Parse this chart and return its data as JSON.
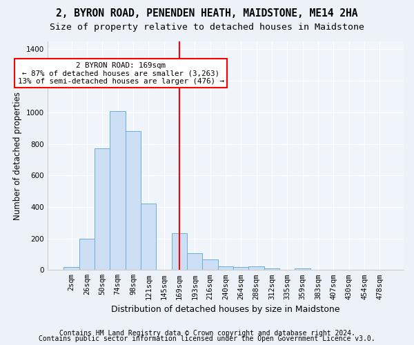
{
  "title": "2, BYRON ROAD, PENENDEN HEATH, MAIDSTONE, ME14 2HA",
  "subtitle": "Size of property relative to detached houses in Maidstone",
  "xlabel": "Distribution of detached houses by size in Maidstone",
  "ylabel": "Number of detached properties",
  "categories": [
    "2sqm",
    "26sqm",
    "50sqm",
    "74sqm",
    "98sqm",
    "121sqm",
    "145sqm",
    "169sqm",
    "193sqm",
    "216sqm",
    "240sqm",
    "264sqm",
    "288sqm",
    "312sqm",
    "335sqm",
    "359sqm",
    "383sqm",
    "407sqm",
    "430sqm",
    "454sqm",
    "478sqm"
  ],
  "values": [
    20,
    200,
    770,
    1010,
    880,
    420,
    0,
    235,
    108,
    68,
    22,
    18,
    22,
    12,
    0,
    8,
    0,
    0,
    0,
    0,
    0
  ],
  "bar_color": "#ccdff5",
  "bar_edge_color": "#6aaed6",
  "vline_index": 7,
  "annotation_text": "2 BYRON ROAD: 169sqm\n← 87% of detached houses are smaller (3,263)\n13% of semi-detached houses are larger (476) →",
  "annotation_box_color": "white",
  "annotation_box_edge": "red",
  "vline_color": "red",
  "footer1": "Contains HM Land Registry data © Crown copyright and database right 2024.",
  "footer2": "Contains public sector information licensed under the Open Government Licence v3.0.",
  "ylim": [
    0,
    1450
  ],
  "yticks": [
    0,
    200,
    400,
    600,
    800,
    1000,
    1200,
    1400
  ],
  "bg_color": "#edf2f9",
  "plot_bg_color": "#f0f4fb",
  "grid_color": "#ffffff",
  "title_fontsize": 10.5,
  "subtitle_fontsize": 9.5,
  "xlabel_fontsize": 9,
  "ylabel_fontsize": 8.5,
  "tick_fontsize": 7.5,
  "footer_fontsize": 7,
  "ann_fontsize": 7.8
}
